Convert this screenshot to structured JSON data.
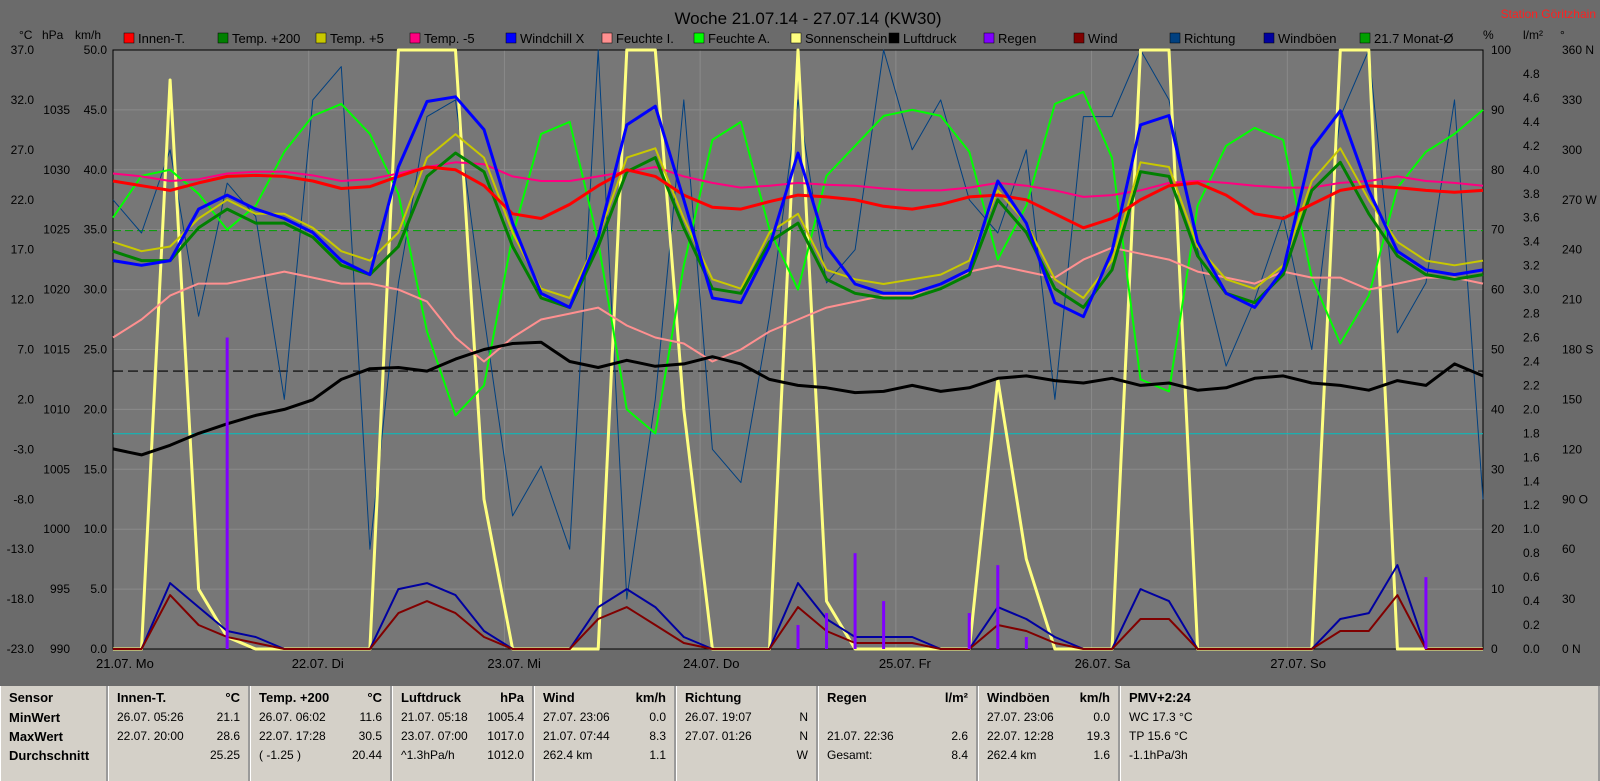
{
  "title": "Woche 21.07.14 - 27.07.14 (KW30)",
  "station": "Station Göritzhain",
  "axes": {
    "left_units": [
      "°C",
      "hPa",
      "km/h"
    ],
    "right_units": [
      "%",
      "l/m²",
      "°"
    ],
    "temp_ticks": [
      "37.0",
      "32.0",
      "27.0",
      "22.0",
      "17.0",
      "12.0",
      "7.0",
      "2.0",
      "-3.0",
      "-8.0",
      "-13.0",
      "-18.0",
      "-23.0"
    ],
    "pressure_ticks": [
      "1035",
      "1030",
      "1025",
      "1020",
      "1015",
      "1010",
      "1005",
      "1000",
      "995",
      "990"
    ],
    "wind_ticks": [
      "50.0",
      "45.0",
      "40.0",
      "35.0",
      "30.0",
      "25.0",
      "20.0",
      "15.0",
      "10.0",
      "5.0",
      "0.0"
    ],
    "humidity_ticks": [
      "100",
      "90",
      "80",
      "70",
      "60",
      "50",
      "40",
      "30",
      "20",
      "10",
      "0"
    ],
    "rain_ticks": [
      "4.8",
      "4.6",
      "4.4",
      "4.2",
      "4.0",
      "3.8",
      "3.6",
      "3.4",
      "3.2",
      "3.0",
      "2.8",
      "2.6",
      "2.4",
      "2.2",
      "2.0",
      "1.8",
      "1.6",
      "1.4",
      "1.2",
      "1.0",
      "0.8",
      "0.6",
      "0.4",
      "0.2",
      "0.0"
    ],
    "direction_ticks": [
      "360 N",
      "330",
      "300",
      "270 W",
      "240",
      "210",
      "180 S",
      "150",
      "120",
      "90 O",
      "60",
      "30",
      "0 N"
    ],
    "x_ticks": [
      "21.07. Mo",
      "22.07. Di",
      "23.07. Mi",
      "24.07. Do",
      "25.07. Fr",
      "26.07. Sa",
      "27.07. So"
    ]
  },
  "legend": [
    {
      "label": "Innen-T.",
      "color": "#ff0000"
    },
    {
      "label": "Temp. +200",
      "color": "#008000"
    },
    {
      "label": "Temp. +5",
      "color": "#c8c800"
    },
    {
      "label": "Temp. -5",
      "color": "#ff0080"
    },
    {
      "label": "Windchill X",
      "color": "#0000ff"
    },
    {
      "label": "Feuchte I.",
      "color": "#ff9090"
    },
    {
      "label": "Feuchte A.",
      "color": "#00ff00"
    },
    {
      "label": "Sonnenschein",
      "color": "#ffff80"
    },
    {
      "label": "Luftdruck",
      "color": "#000000"
    },
    {
      "label": "Regen",
      "color": "#8000ff"
    },
    {
      "label": "Wind",
      "color": "#800000"
    },
    {
      "label": "Richtung",
      "color": "#004080"
    },
    {
      "label": "Windböen",
      "color": "#0000a0"
    },
    {
      "label": "21.7 Monat-Ø",
      "color": "#00a000"
    }
  ],
  "chart_data": {
    "type": "line",
    "x_range": [
      "2014-07-21 00:00",
      "2014-07-28 00:00"
    ],
    "x_step_hours": 6,
    "y_temp_range": [
      -23,
      41
    ],
    "y_pressure_range": [
      990,
      1040
    ],
    "y_wind_range": [
      0,
      50
    ],
    "y_humidity_range": [
      0,
      100
    ],
    "reference_lines": [
      {
        "name": "21.7 Monat-Ø",
        "value_temp": 21.7,
        "color": "#00a000"
      },
      {
        "value_pressure": 1013.2,
        "color": "#000000"
      },
      {
        "value_temp": 0,
        "color": "#00c0c0"
      }
    ],
    "series": [
      {
        "name": "Innen-T.",
        "color": "#ff0000",
        "unit": "°C",
        "values": [
          27.0,
          26.5,
          26.0,
          26.8,
          27.5,
          27.6,
          27.5,
          27.0,
          26.2,
          26.4,
          27.5,
          28.5,
          28.2,
          26.5,
          23.5,
          23.0,
          24.5,
          26.5,
          28.2,
          27.5,
          25.5,
          24.2,
          24.0,
          24.8,
          25.5,
          25.3,
          25.0,
          24.3,
          24.0,
          24.5,
          25.3,
          25.5,
          25.0,
          23.5,
          22.0,
          23.0,
          25.0,
          26.5,
          26.8,
          25.5,
          23.5,
          23.0,
          24.5,
          26.0,
          26.5,
          26.3,
          26.0,
          25.8,
          26.0
        ]
      },
      {
        "name": "Temp. +200",
        "color": "#008000",
        "unit": "°C",
        "values": [
          19.5,
          18.5,
          18.5,
          22.0,
          24.0,
          22.5,
          22.5,
          21.0,
          18.0,
          17.0,
          20.0,
          27.5,
          30.0,
          28.0,
          20.0,
          14.5,
          13.5,
          20.0,
          28.0,
          29.5,
          22.0,
          15.5,
          15.0,
          20.5,
          22.5,
          16.5,
          15.0,
          14.5,
          14.5,
          15.5,
          17.0,
          25.0,
          21.5,
          15.5,
          13.5,
          17.5,
          28.0,
          27.5,
          19.0,
          15.0,
          14.0,
          17.0,
          26.0,
          29.0,
          23.5,
          19.0,
          17.0,
          16.5,
          17.0
        ]
      },
      {
        "name": "Temp. +5",
        "color": "#c8c800",
        "unit": "°C",
        "values": [
          20.5,
          19.5,
          20.0,
          23.0,
          25.0,
          23.5,
          23.5,
          22.0,
          19.5,
          18.5,
          21.5,
          29.5,
          32.0,
          29.5,
          21.5,
          15.5,
          14.5,
          21.0,
          29.5,
          30.5,
          23.0,
          16.5,
          15.5,
          21.5,
          23.5,
          17.5,
          16.5,
          16.0,
          16.5,
          17.0,
          18.5,
          26.0,
          22.5,
          16.5,
          14.5,
          18.5,
          29.0,
          28.5,
          20.0,
          16.5,
          15.5,
          18.0,
          27.0,
          30.5,
          25.0,
          20.5,
          18.5,
          18.0,
          18.5
        ]
      },
      {
        "name": "Temp. -5",
        "color": "#ff0080",
        "unit": "°C",
        "values": [
          27.8,
          27.5,
          27.0,
          27.2,
          27.8,
          28.0,
          28.0,
          27.6,
          27.0,
          27.2,
          27.8,
          28.5,
          29.0,
          28.8,
          27.5,
          27.0,
          27.0,
          27.5,
          28.0,
          28.5,
          27.5,
          26.8,
          26.3,
          26.5,
          26.8,
          26.6,
          26.5,
          26.2,
          26.0,
          26.0,
          26.3,
          26.8,
          26.5,
          26.0,
          25.3,
          25.5,
          26.0,
          26.8,
          27.0,
          26.8,
          26.5,
          26.3,
          26.3,
          26.8,
          27.0,
          27.5,
          27.0,
          26.8,
          26.5
        ]
      },
      {
        "name": "Windchill X",
        "color": "#0000ff",
        "unit": "°C",
        "values": [
          18.5,
          18.0,
          18.5,
          24.0,
          25.5,
          24.0,
          23.0,
          21.5,
          18.5,
          17.0,
          28.5,
          35.5,
          36.0,
          32.5,
          22.5,
          15.0,
          13.5,
          21.0,
          33.0,
          35.0,
          25.0,
          14.5,
          14.0,
          20.0,
          30.0,
          20.0,
          16.0,
          15.0,
          15.0,
          16.0,
          17.5,
          27.0,
          22.5,
          14.0,
          12.5,
          19.5,
          33.0,
          34.0,
          20.5,
          15.0,
          13.5,
          17.5,
          30.5,
          34.5,
          26.0,
          19.5,
          17.5,
          17.0,
          17.5
        ]
      },
      {
        "name": "Feuchte I.",
        "color": "#ff9090",
        "unit": "%",
        "values": [
          52,
          55,
          59,
          61,
          61,
          62,
          63,
          62,
          61,
          61,
          60,
          58,
          52,
          48,
          52,
          55,
          56,
          57,
          54,
          52,
          51,
          48,
          50,
          53,
          55,
          57,
          58,
          59,
          59,
          61,
          63,
          64,
          63,
          62,
          65,
          67,
          66,
          65,
          63,
          62,
          61,
          63,
          62,
          62,
          60,
          61,
          62,
          62,
          61
        ]
      },
      {
        "name": "Feuchte A.",
        "color": "#00ff00",
        "unit": "%",
        "values": [
          72,
          79,
          80,
          76,
          70,
          74,
          83,
          89,
          91,
          86,
          76,
          53,
          39,
          44,
          69,
          86,
          88,
          68,
          40,
          36,
          64,
          85,
          88,
          70,
          60,
          79,
          84,
          89,
          90,
          89,
          83,
          65,
          74,
          91,
          93,
          82,
          45,
          43,
          74,
          84,
          87,
          85,
          62,
          51,
          59,
          77,
          83,
          86,
          90
        ]
      },
      {
        "name": "Sonnenschein",
        "color": "#ffff80",
        "unit": "%",
        "values": [
          0,
          0,
          95,
          10,
          2,
          0,
          0,
          0,
          0,
          0,
          100,
          100,
          100,
          25,
          0,
          0,
          0,
          0,
          100,
          100,
          40,
          0,
          0,
          0,
          100,
          8,
          0,
          0,
          0,
          0,
          0,
          45,
          15,
          0,
          0,
          0,
          100,
          100,
          0,
          0,
          0,
          0,
          0,
          100,
          100,
          0,
          0,
          0,
          0
        ]
      },
      {
        "name": "Luftdruck",
        "color": "#000000",
        "unit": "hPa",
        "values": [
          1006.7,
          1006.2,
          1007.0,
          1008.0,
          1008.8,
          1009.5,
          1010.0,
          1010.8,
          1012.5,
          1013.4,
          1013.5,
          1013.2,
          1014.2,
          1015.0,
          1015.5,
          1015.6,
          1014.0,
          1013.5,
          1014.1,
          1013.6,
          1013.8,
          1014.4,
          1013.8,
          1012.5,
          1012.0,
          1011.8,
          1011.4,
          1011.5,
          1012.0,
          1011.5,
          1011.8,
          1012.6,
          1012.8,
          1012.4,
          1012.2,
          1012.6,
          1012.0,
          1012.2,
          1011.6,
          1011.8,
          1012.6,
          1012.8,
          1012.2,
          1012.0,
          1011.6,
          1012.4,
          1012.0,
          1013.8,
          1012.8
        ]
      },
      {
        "name": "Regen",
        "color": "#8000ff",
        "unit": "l/m²",
        "values": [
          0,
          0,
          0,
          0,
          2.6,
          0,
          0,
          0,
          0,
          0,
          0,
          0,
          0,
          0,
          0,
          0,
          0,
          0,
          0,
          0,
          0,
          0,
          0,
          0,
          0.2,
          0.3,
          0.8,
          0.4,
          0,
          0,
          0.3,
          0.7,
          0.1,
          0,
          0,
          0,
          0,
          0,
          0,
          0,
          0,
          0,
          0,
          0,
          0,
          0,
          0.6,
          0,
          0
        ]
      },
      {
        "name": "Wind",
        "color": "#800000",
        "unit": "km/h",
        "values": [
          0,
          0,
          4.5,
          2.0,
          1.0,
          0.5,
          0,
          0,
          0,
          0,
          3.0,
          4.0,
          3.0,
          1.0,
          0,
          0,
          0,
          2.5,
          3.5,
          2.0,
          0.5,
          0,
          0,
          0,
          3.5,
          1.5,
          0.5,
          0.5,
          0.5,
          0,
          0,
          2.0,
          1.5,
          0.5,
          0,
          0,
          2.5,
          2.5,
          0,
          0,
          0,
          0,
          0,
          1.5,
          1.5,
          4.5,
          0,
          0,
          0
        ]
      },
      {
        "name": "Windböen",
        "color": "#0000a0",
        "unit": "km/h",
        "values": [
          0,
          0,
          5.5,
          3.5,
          1.5,
          1.0,
          0,
          0,
          0,
          0,
          5.0,
          5.5,
          4.5,
          1.5,
          0,
          0,
          0,
          3.5,
          5.0,
          3.5,
          1.0,
          0,
          0,
          0,
          5.5,
          2.5,
          1.0,
          1.0,
          1.0,
          0,
          0,
          3.5,
          2.5,
          1.0,
          0,
          0,
          5.0,
          4.0,
          0,
          0,
          0,
          0,
          0,
          2.5,
          3.0,
          7.0,
          0,
          0,
          0
        ]
      },
      {
        "name": "Richtung",
        "color": "#004080",
        "unit": "°",
        "values": [
          270,
          250,
          300,
          200,
          280,
          260,
          150,
          330,
          350,
          60,
          220,
          320,
          330,
          200,
          80,
          110,
          60,
          360,
          30,
          150,
          330,
          120,
          100,
          200,
          330,
          220,
          240,
          360,
          300,
          330,
          270,
          250,
          300,
          150,
          320,
          320,
          360,
          330,
          240,
          170,
          210,
          260,
          180,
          320,
          360,
          190,
          220,
          330,
          90
        ]
      }
    ]
  },
  "table": {
    "columns": [
      {
        "header": "Sensor",
        "unit": "",
        "rows": [
          "MinWert",
          "MaxWert",
          "Durchschnitt"
        ]
      },
      {
        "header": "Innen-T.",
        "unit": "°C",
        "rows": [
          [
            "26.07. 05:26",
            "21.1"
          ],
          [
            "22.07. 20:00",
            "28.6"
          ],
          [
            "",
            "25.25"
          ]
        ]
      },
      {
        "header": "Temp. +200",
        "unit": "°C",
        "rows": [
          [
            "26.07. 06:02",
            "11.6"
          ],
          [
            "22.07. 17:28",
            "30.5"
          ],
          [
            "( -1.25 )",
            "20.44"
          ]
        ]
      },
      {
        "header": "Luftdruck",
        "unit": "hPa",
        "rows": [
          [
            "21.07. 05:18",
            "1005.4"
          ],
          [
            "23.07. 07:00",
            "1017.0"
          ],
          [
            "^1.3hPa/h",
            "1012.0"
          ]
        ]
      },
      {
        "header": "Wind",
        "unit": "km/h",
        "rows": [
          [
            "27.07. 23:06",
            "0.0"
          ],
          [
            "21.07. 07:44",
            "8.3"
          ],
          [
            "262.4 km",
            "1.1"
          ]
        ]
      },
      {
        "header": "Richtung",
        "unit": "",
        "rows": [
          [
            "26.07. 19:07",
            "N"
          ],
          [
            "27.07. 01:26",
            "N"
          ],
          [
            "",
            "W"
          ]
        ]
      },
      {
        "header": "Regen",
        "unit": "l/m²",
        "rows": [
          [
            "",
            ""
          ],
          [
            "21.07. 22:36",
            "2.6"
          ],
          [
            "Gesamt:",
            "8.4"
          ]
        ]
      },
      {
        "header": "Windböen",
        "unit": "km/h",
        "rows": [
          [
            "27.07. 23:06",
            "0.0"
          ],
          [
            "22.07. 12:28",
            "19.3"
          ],
          [
            "262.4 km",
            "1.6"
          ]
        ]
      },
      {
        "header": "PMV+2:24",
        "unit": "",
        "rows": [
          "WC 17.3 °C",
          "TP 15.6 °C",
          "-1.1hPa/3h"
        ]
      }
    ]
  }
}
